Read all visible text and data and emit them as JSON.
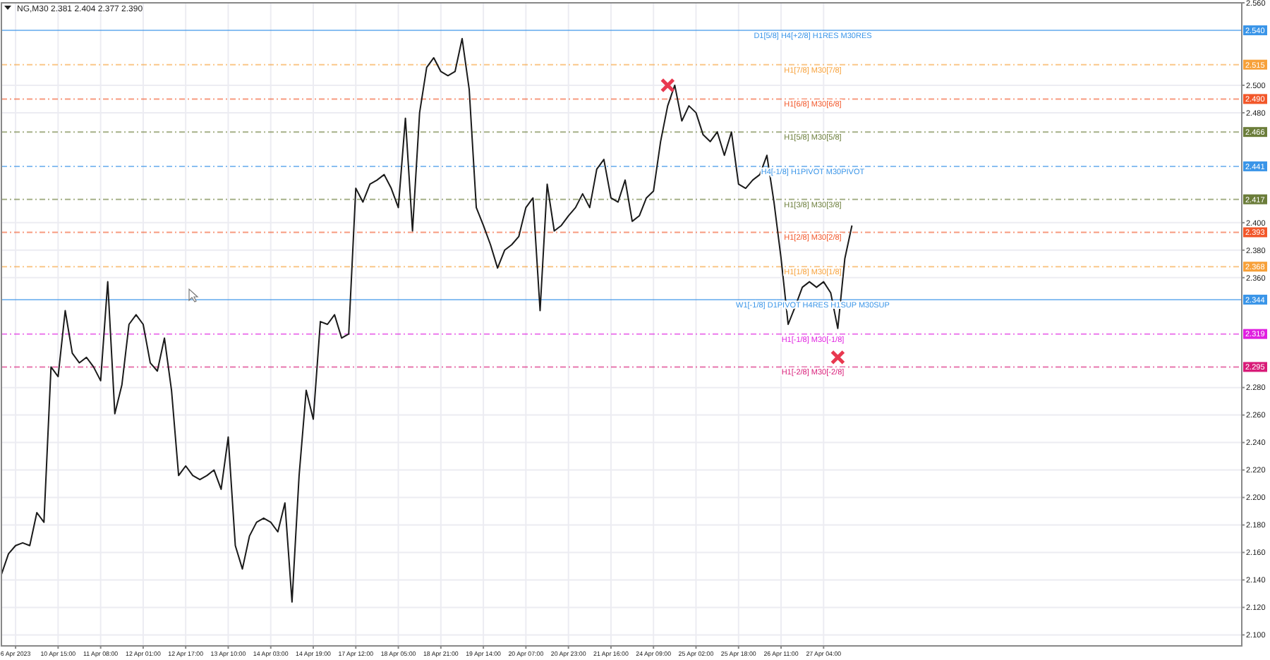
{
  "chart_data": {
    "type": "line",
    "title": "NG,M30 2.381 2.404 2.377 2.390",
    "categories": [
      null,
      null,
      "6 Apr 2023",
      null,
      null,
      null,
      null,
      null,
      "10 Apr 15:00",
      null,
      null,
      null,
      null,
      null,
      "11 Apr 08:00",
      null,
      null,
      null,
      null,
      null,
      "12 Apr 01:00",
      null,
      null,
      null,
      null,
      null,
      "12 Apr 17:00",
      null,
      null,
      null,
      null,
      null,
      "13 Apr 10:00",
      null,
      null,
      null,
      null,
      null,
      "14 Apr 03:00",
      null,
      null,
      null,
      null,
      null,
      "14 Apr 19:00",
      null,
      null,
      null,
      null,
      null,
      "17 Apr 12:00",
      null,
      null,
      null,
      null,
      null,
      "18 Apr 05:00",
      null,
      null,
      null,
      null,
      null,
      "18 Apr 21:00",
      null,
      null,
      null,
      null,
      null,
      "19 Apr 14:00",
      null,
      null,
      null,
      null,
      null,
      "20 Apr 07:00",
      null,
      null,
      null,
      null,
      null,
      "20 Apr 23:00",
      null,
      null,
      null,
      null,
      null,
      "21 Apr 16:00",
      null,
      null,
      null,
      null,
      null,
      "24 Apr 09:00",
      null,
      null,
      null,
      null,
      null,
      "25 Apr 02:00",
      null,
      null,
      null,
      null,
      null,
      "25 Apr 18:00",
      null,
      null,
      null,
      null,
      null,
      "26 Apr 11:00",
      null,
      null,
      null,
      null,
      null,
      "27 Apr 04:00",
      null,
      null,
      null,
      null,
      null,
      null,
      null,
      null,
      null,
      null,
      null,
      null,
      null,
      null,
      null,
      null,
      null,
      null,
      null,
      null,
      null,
      null,
      null,
      null,
      null,
      null,
      null,
      null,
      null,
      null,
      null,
      null,
      null,
      null,
      null,
      null,
      null,
      null,
      null,
      null,
      null,
      null,
      null,
      null,
      null,
      null,
      null,
      null,
      null,
      null,
      null,
      null,
      null,
      null,
      null,
      null,
      null,
      null,
      null
    ],
    "series": [
      {
        "color": "#1a1a1a",
        "values": [
          2.144,
          2.159,
          2.165,
          2.167,
          2.165,
          2.189,
          2.182,
          2.295,
          2.288,
          2.336,
          2.305,
          2.298,
          2.302,
          2.295,
          2.285,
          2.357,
          2.261,
          2.282,
          2.326,
          2.333,
          2.326,
          2.298,
          2.292,
          2.316,
          2.278,
          2.216,
          2.223,
          2.216,
          2.213,
          2.216,
          2.22,
          2.206,
          2.244,
          2.165,
          2.148,
          2.172,
          2.182,
          2.185,
          2.182,
          2.175,
          2.196,
          2.124,
          2.216,
          2.278,
          2.257,
          2.328,
          2.326,
          2.333,
          2.316,
          2.319,
          2.425,
          2.415,
          2.428,
          2.431,
          2.435,
          2.425,
          2.411,
          2.476,
          2.394,
          2.48,
          2.513,
          2.52,
          2.51,
          2.507,
          2.51,
          2.534,
          2.497,
          2.411,
          2.398,
          2.384,
          2.367,
          2.38,
          2.384,
          2.39,
          2.411,
          2.418,
          2.336,
          2.428,
          2.394,
          2.398,
          2.405,
          2.411,
          2.421,
          2.411,
          2.439,
          2.446,
          2.418,
          2.415,
          2.431,
          2.401,
          2.405,
          2.418,
          2.423,
          2.459,
          2.485,
          2.5,
          2.474,
          2.485,
          2.48,
          2.464,
          2.459,
          2.466,
          2.449,
          2.466,
          2.428,
          2.425,
          2.431,
          2.435,
          2.449,
          2.415,
          2.374,
          2.326,
          2.339,
          2.353,
          2.357,
          2.353,
          2.357,
          2.349,
          2.323,
          2.374,
          2.398,
          null,
          null,
          null,
          null,
          null,
          null,
          null,
          null,
          null,
          null,
          null,
          null,
          null,
          null,
          null,
          null,
          null,
          null,
          null,
          null,
          null,
          null,
          null,
          null,
          null,
          null,
          null,
          null,
          null,
          null,
          null,
          null,
          null,
          null,
          null,
          null,
          null,
          null,
          null,
          null,
          null,
          null,
          null,
          null,
          null,
          null,
          null,
          null,
          null,
          null,
          null,
          null,
          null,
          null,
          null
        ]
      },
      {
        "type": "scatter",
        "marker": "cross",
        "color": "#e8384f",
        "values": [
          null,
          null,
          null,
          null,
          null,
          null,
          null,
          null,
          null,
          null,
          null,
          null,
          null,
          null,
          null,
          null,
          null,
          null,
          null,
          null,
          null,
          null,
          null,
          null,
          null,
          null,
          null,
          null,
          null,
          null,
          null,
          null,
          null,
          null,
          null,
          null,
          null,
          null,
          null,
          null,
          null,
          null,
          null,
          null,
          null,
          null,
          null,
          null,
          null,
          null,
          null,
          null,
          null,
          null,
          null,
          null,
          null,
          null,
          null,
          null,
          null,
          null,
          null,
          null,
          null,
          null,
          null,
          null,
          null,
          null,
          null,
          null,
          null,
          null,
          null,
          null,
          null,
          null,
          null,
          null,
          null,
          null,
          null,
          null,
          null,
          null,
          null,
          null,
          null,
          null,
          null,
          null,
          null,
          null,
          2.5,
          null,
          null,
          null,
          null,
          null,
          null,
          null,
          null,
          null,
          null,
          null,
          null,
          null,
          null,
          null,
          null,
          null,
          null,
          null,
          null,
          null,
          null,
          null,
          2.302,
          null,
          null,
          null,
          null,
          null,
          null,
          null,
          null,
          null,
          null,
          null,
          null,
          null,
          null,
          null,
          null,
          null,
          null,
          null,
          null,
          null,
          null,
          null,
          null,
          null,
          null,
          null,
          null,
          null,
          null,
          null,
          null,
          null,
          null,
          null,
          null,
          null,
          null,
          null,
          null,
          null,
          null,
          null,
          null,
          null,
          null,
          null,
          null,
          null,
          null,
          null,
          null,
          null,
          null,
          null,
          null,
          null
        ]
      }
    ],
    "ylim": [
      2.092,
      2.56
    ],
    "yticks": [
      {
        "value": 2.1,
        "label": "2.100"
      },
      {
        "value": 2.12,
        "label": "2.120"
      },
      {
        "value": 2.14,
        "label": "2.140"
      },
      {
        "value": 2.16,
        "label": "2.160"
      },
      {
        "value": 2.18,
        "label": "2.180"
      },
      {
        "value": 2.2,
        "label": "2.200"
      },
      {
        "value": 2.22,
        "label": "2.220"
      },
      {
        "value": 2.24,
        "label": "2.240"
      },
      {
        "value": 2.26,
        "label": "2.260"
      },
      {
        "value": 2.28,
        "label": "2.280"
      },
      {
        "value": 2.36,
        "label": "2.360"
      },
      {
        "value": 2.38,
        "label": "2.380"
      },
      {
        "value": 2.4,
        "label": "2.400"
      },
      {
        "value": 2.48,
        "label": "2.480"
      },
      {
        "value": 2.5,
        "label": "2.500"
      },
      {
        "value": 2.56,
        "label": "2.560"
      }
    ],
    "grid": true,
    "annotations": [
      {
        "text": "2.540",
        "y": 2.54
      },
      {
        "text": "2.515",
        "y": 2.515
      },
      {
        "text": "2.490",
        "y": 2.49
      },
      {
        "text": "2.466",
        "y": 2.466
      },
      {
        "text": "2.441",
        "y": 2.441
      },
      {
        "text": "2.417",
        "y": 2.417
      },
      {
        "text": "2.393",
        "y": 2.393
      },
      {
        "text": "2.368",
        "y": 2.368
      },
      {
        "text": "2.344",
        "y": 2.344
      },
      {
        "text": "2.319",
        "y": 2.319
      },
      {
        "text": "2.295",
        "y": 2.295
      }
    ],
    "ref_lines": [
      {
        "axis": "y",
        "value": 2.54,
        "label": "D1[5/8] H4[+2/8] H1RES M30RES",
        "color": "#3a95e8",
        "line_style": "solid"
      },
      {
        "axis": "y",
        "value": 2.515,
        "label": "H1[7/8] M30[7/8]",
        "color": "#f7a13a",
        "line_style": "dashed"
      },
      {
        "axis": "y",
        "value": 2.49,
        "label": "H1[6/8] M30[6/8]",
        "color": "#f2572a",
        "line_style": "dashed"
      },
      {
        "axis": "y",
        "value": 2.466,
        "label": "H1[5/8] M30[5/8]",
        "color": "#6b7d3a",
        "line_style": "dashed"
      },
      {
        "axis": "y",
        "value": 2.441,
        "label": "H4[-1/8] H1PIVOT M30PIVOT",
        "color": "#3a95e8",
        "line_style": "dashed"
      },
      {
        "axis": "y",
        "value": 2.417,
        "label": "H1[3/8] M30[3/8]",
        "color": "#6b7d3a",
        "line_style": "dashed"
      },
      {
        "axis": "y",
        "value": 2.393,
        "label": "H1[2/8] M30[2/8]",
        "color": "#f2572a",
        "line_style": "dashed"
      },
      {
        "axis": "y",
        "value": 2.368,
        "label": "H1[1/8] M30[1/8]",
        "color": "#f7a13a",
        "line_style": "dashed"
      },
      {
        "axis": "y",
        "value": 2.344,
        "label": "W1[-1/8] D1PIVOT H4RES H1SUP M30SUP",
        "color": "#3a95e8",
        "line_style": "solid"
      },
      {
        "axis": "y",
        "value": 2.319,
        "label": "H1[-1/8] M30[-1/8]",
        "color": "#e01fe0",
        "line_style": "dashed"
      },
      {
        "axis": "y",
        "value": 2.295,
        "label": "H1[-2/8] M30[-2/8]",
        "color": "#d81b78",
        "line_style": "dashed"
      }
    ]
  }
}
